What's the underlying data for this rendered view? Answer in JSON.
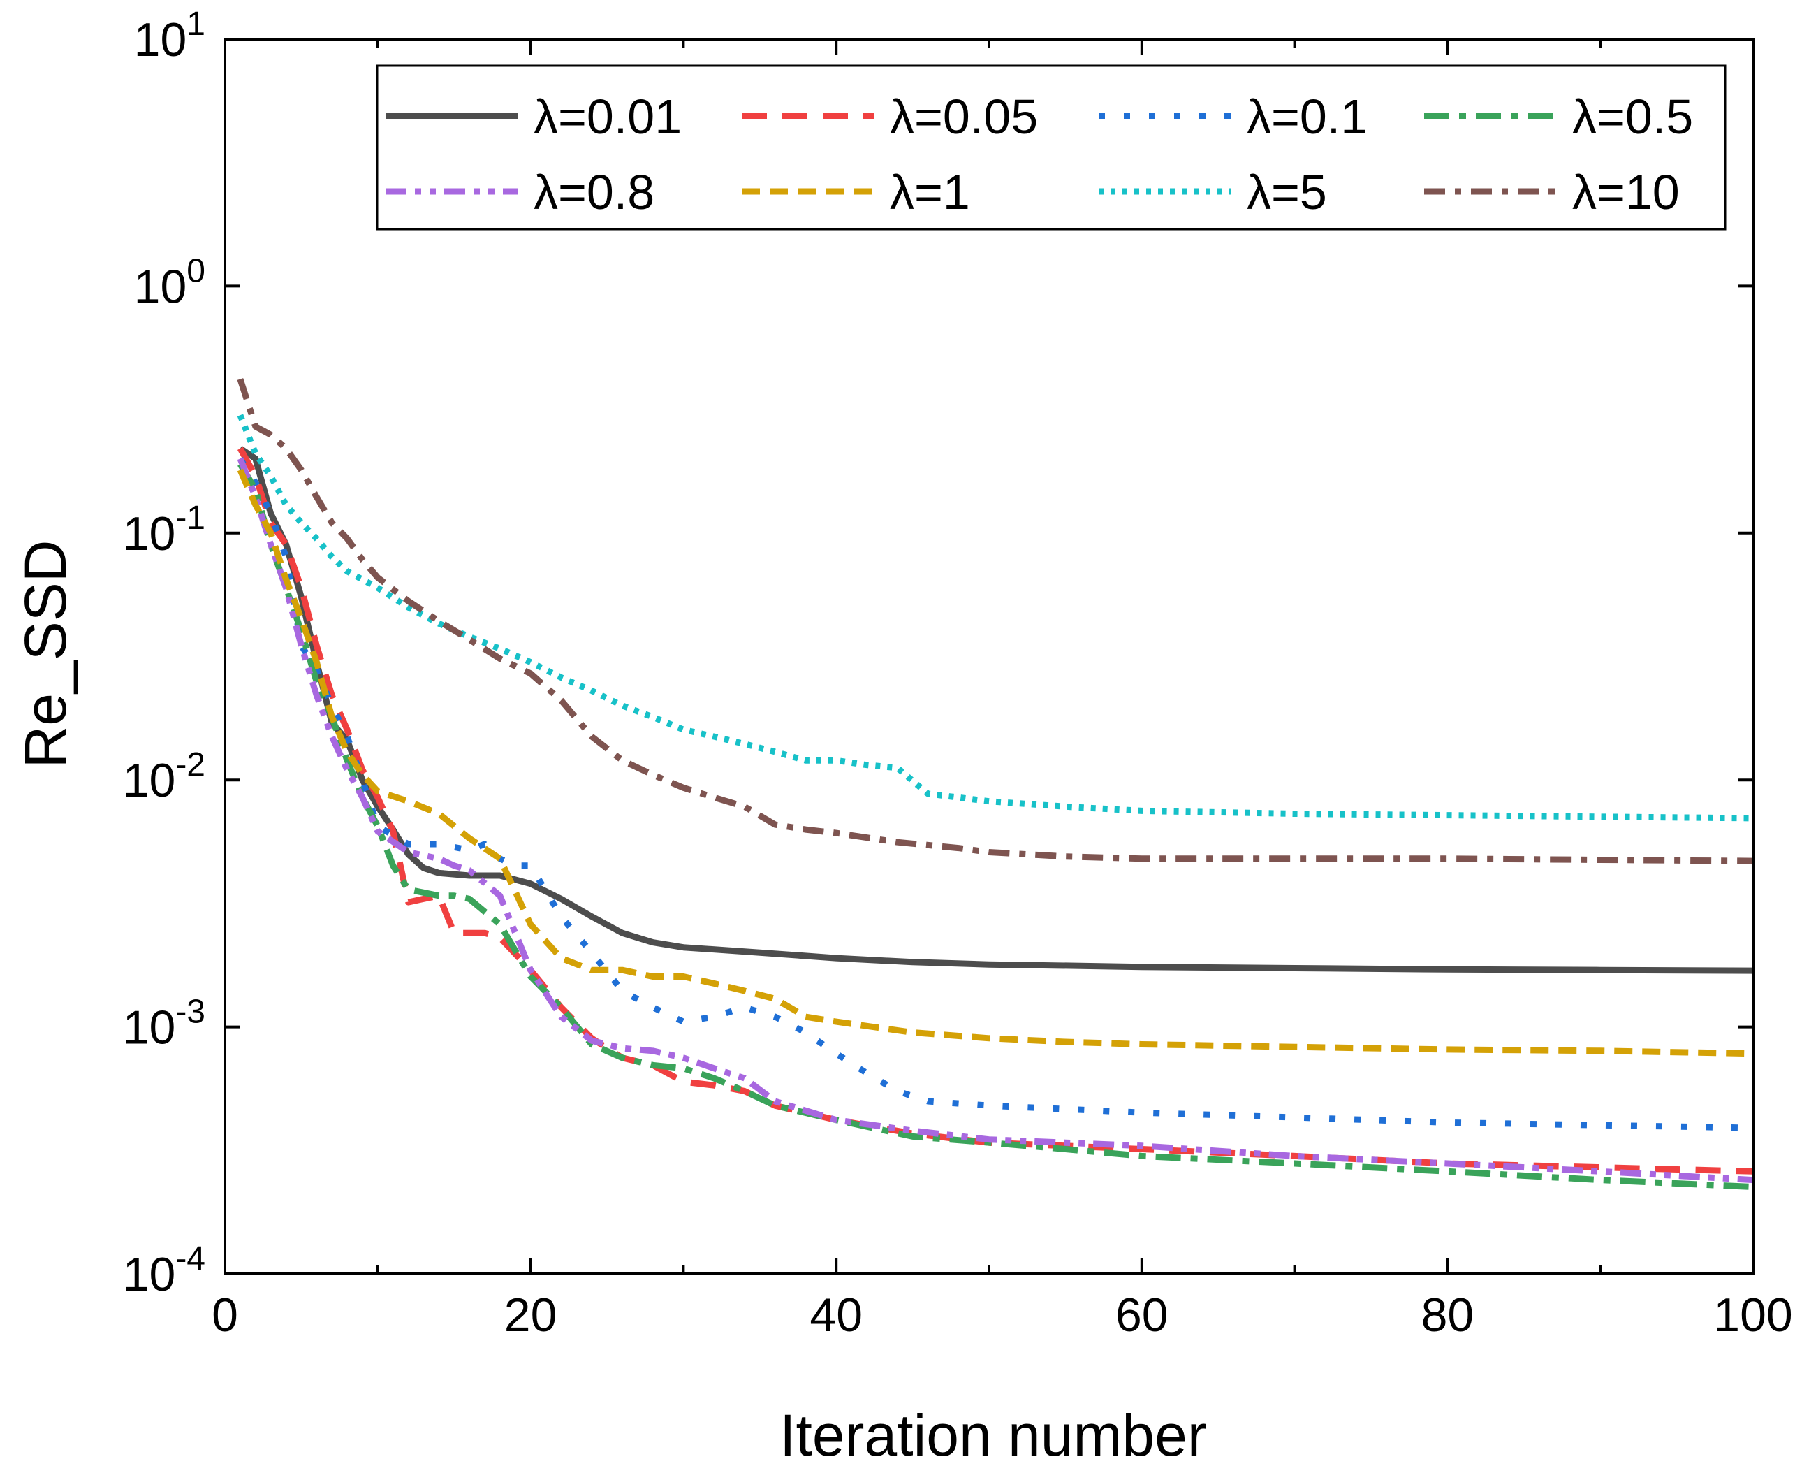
{
  "chart_data": {
    "type": "line",
    "title": "",
    "xlabel": "Iteration number",
    "ylabel": "Re_SSD",
    "xlim": [
      0,
      100
    ],
    "ylim": [
      0.0001,
      10
    ],
    "yscale": "log",
    "x_ticks": [
      0,
      20,
      40,
      60,
      80,
      100
    ],
    "x_tick_labels": [
      "0",
      "20",
      "40",
      "60",
      "80",
      "100"
    ],
    "y_ticks": [
      {
        "value": 0.0001,
        "base": "10",
        "exp": "-4"
      },
      {
        "value": 0.001,
        "base": "10",
        "exp": "-3"
      },
      {
        "value": 0.01,
        "base": "10",
        "exp": "-2"
      },
      {
        "value": 0.1,
        "base": "10",
        "exp": "-1"
      },
      {
        "value": 1,
        "base": "10",
        "exp": "0"
      },
      {
        "value": 10,
        "base": "10",
        "exp": "1"
      }
    ],
    "grid": false,
    "legend_position": "top-right",
    "series": [
      {
        "name": "λ=0.01",
        "color": "#4d4d4d",
        "dash": "solid",
        "points": [
          [
            1,
            0.22
          ],
          [
            2,
            0.2
          ],
          [
            3,
            0.12
          ],
          [
            4,
            0.09
          ],
          [
            5,
            0.055
          ],
          [
            6,
            0.03
          ],
          [
            7,
            0.017
          ],
          [
            8,
            0.0145
          ],
          [
            9,
            0.01
          ],
          [
            10,
            0.0078
          ],
          [
            11,
            0.0063
          ],
          [
            12,
            0.005
          ],
          [
            13,
            0.0044
          ],
          [
            14,
            0.0042
          ],
          [
            16,
            0.0041
          ],
          [
            18,
            0.0041
          ],
          [
            20,
            0.0038
          ],
          [
            22,
            0.0033
          ],
          [
            24,
            0.0028
          ],
          [
            26,
            0.0024
          ],
          [
            28,
            0.0022
          ],
          [
            30,
            0.0021
          ],
          [
            35,
            0.002
          ],
          [
            40,
            0.0019
          ],
          [
            45,
            0.00183
          ],
          [
            50,
            0.00179
          ],
          [
            60,
            0.00175
          ],
          [
            70,
            0.00173
          ],
          [
            80,
            0.00171
          ],
          [
            90,
            0.0017
          ],
          [
            100,
            0.00169
          ]
        ]
      },
      {
        "name": "λ=0.05",
        "color": "#f04040",
        "dash": "longdash",
        "points": [
          [
            1,
            0.22
          ],
          [
            2,
            0.17
          ],
          [
            3,
            0.11
          ],
          [
            4,
            0.09
          ],
          [
            5,
            0.06
          ],
          [
            6,
            0.035
          ],
          [
            7,
            0.022
          ],
          [
            8,
            0.016
          ],
          [
            9,
            0.011
          ],
          [
            10,
            0.0085
          ],
          [
            11,
            0.0062
          ],
          [
            12,
            0.0032
          ],
          [
            13,
            0.0033
          ],
          [
            14,
            0.0034
          ],
          [
            15,
            0.0024
          ],
          [
            17,
            0.0024
          ],
          [
            18,
            0.0023
          ],
          [
            20,
            0.0017
          ],
          [
            22,
            0.0012
          ],
          [
            24,
            0.0009
          ],
          [
            26,
            0.00075
          ],
          [
            28,
            0.0007
          ],
          [
            30,
            0.0006
          ],
          [
            32,
            0.00058
          ],
          [
            34,
            0.00055
          ],
          [
            36,
            0.00048
          ],
          [
            40,
            0.00042
          ],
          [
            45,
            0.00037
          ],
          [
            50,
            0.00034
          ],
          [
            55,
            0.00033
          ],
          [
            60,
            0.00032
          ],
          [
            70,
            0.0003
          ],
          [
            80,
            0.00028
          ],
          [
            90,
            0.00027
          ],
          [
            100,
            0.00026
          ]
        ]
      },
      {
        "name": "λ=0.1",
        "color": "#1f6fd6",
        "dash": "dotted",
        "points": [
          [
            1,
            0.2
          ],
          [
            2,
            0.16
          ],
          [
            3,
            0.12
          ],
          [
            4,
            0.08
          ],
          [
            5,
            0.035
          ],
          [
            6,
            0.028
          ],
          [
            7,
            0.02
          ],
          [
            8,
            0.015
          ],
          [
            9,
            0.01
          ],
          [
            10,
            0.0065
          ],
          [
            12,
            0.0055
          ],
          [
            14,
            0.0055
          ],
          [
            16,
            0.0052
          ],
          [
            17,
            0.0055
          ],
          [
            18,
            0.0048
          ],
          [
            19,
            0.0045
          ],
          [
            20,
            0.0045
          ],
          [
            22,
            0.0028
          ],
          [
            24,
            0.002
          ],
          [
            26,
            0.0014
          ],
          [
            28,
            0.0012
          ],
          [
            30,
            0.00105
          ],
          [
            32,
            0.0011
          ],
          [
            34,
            0.0012
          ],
          [
            36,
            0.0011
          ],
          [
            38,
            0.00095
          ],
          [
            40,
            0.00078
          ],
          [
            42,
            0.00065
          ],
          [
            44,
            0.00055
          ],
          [
            46,
            0.0005
          ],
          [
            50,
            0.00048
          ],
          [
            60,
            0.00045
          ],
          [
            70,
            0.00043
          ],
          [
            80,
            0.00041
          ],
          [
            90,
            0.0004
          ],
          [
            100,
            0.00039
          ]
        ]
      },
      {
        "name": "λ=0.5",
        "color": "#3aa35a",
        "dash": "dashdot",
        "points": [
          [
            1,
            0.19
          ],
          [
            2,
            0.15
          ],
          [
            3,
            0.09
          ],
          [
            4,
            0.06
          ],
          [
            5,
            0.04
          ],
          [
            6,
            0.025
          ],
          [
            7,
            0.018
          ],
          [
            8,
            0.012
          ],
          [
            9,
            0.0085
          ],
          [
            10,
            0.0065
          ],
          [
            11,
            0.0045
          ],
          [
            12,
            0.0036
          ],
          [
            13,
            0.0035
          ],
          [
            14,
            0.0034
          ],
          [
            15,
            0.0034
          ],
          [
            16,
            0.0033
          ],
          [
            18,
            0.0026
          ],
          [
            20,
            0.0016
          ],
          [
            22,
            0.0012
          ],
          [
            24,
            0.00085
          ],
          [
            26,
            0.00075
          ],
          [
            28,
            0.0007
          ],
          [
            30,
            0.00068
          ],
          [
            32,
            0.00062
          ],
          [
            34,
            0.00055
          ],
          [
            36,
            0.00048
          ],
          [
            40,
            0.00042
          ],
          [
            45,
            0.00036
          ],
          [
            50,
            0.00034
          ],
          [
            55,
            0.00032
          ],
          [
            60,
            0.0003
          ],
          [
            70,
            0.00028
          ],
          [
            80,
            0.00026
          ],
          [
            90,
            0.00024
          ],
          [
            100,
            0.000225
          ]
        ]
      },
      {
        "name": "λ=0.8",
        "color": "#a868e0",
        "dash": "dashdotdot",
        "points": [
          [
            1,
            0.2
          ],
          [
            2,
            0.14
          ],
          [
            3,
            0.09
          ],
          [
            4,
            0.06
          ],
          [
            5,
            0.035
          ],
          [
            6,
            0.022
          ],
          [
            7,
            0.015
          ],
          [
            8,
            0.011
          ],
          [
            9,
            0.0085
          ],
          [
            10,
            0.0062
          ],
          [
            12,
            0.0051
          ],
          [
            14,
            0.0048
          ],
          [
            15,
            0.0045
          ],
          [
            16,
            0.0043
          ],
          [
            18,
            0.0034
          ],
          [
            20,
            0.0017
          ],
          [
            22,
            0.0011
          ],
          [
            24,
            0.00088
          ],
          [
            26,
            0.00082
          ],
          [
            28,
            0.0008
          ],
          [
            30,
            0.00075
          ],
          [
            32,
            0.00068
          ],
          [
            34,
            0.00062
          ],
          [
            36,
            0.0005
          ],
          [
            40,
            0.00042
          ],
          [
            45,
            0.00038
          ],
          [
            50,
            0.00035
          ],
          [
            55,
            0.00034
          ],
          [
            60,
            0.00033
          ],
          [
            70,
            0.0003
          ],
          [
            80,
            0.00028
          ],
          [
            90,
            0.00026
          ],
          [
            100,
            0.00024
          ]
        ]
      },
      {
        "name": "λ=1",
        "color": "#d4a106",
        "dash": "shortdash",
        "points": [
          [
            1,
            0.18
          ],
          [
            2,
            0.13
          ],
          [
            3,
            0.1
          ],
          [
            4,
            0.065
          ],
          [
            5,
            0.045
          ],
          [
            6,
            0.03
          ],
          [
            7,
            0.018
          ],
          [
            8,
            0.013
          ],
          [
            9,
            0.0105
          ],
          [
            10,
            0.009
          ],
          [
            12,
            0.0082
          ],
          [
            14,
            0.0073
          ],
          [
            16,
            0.0058
          ],
          [
            18,
            0.0048
          ],
          [
            20,
            0.0026
          ],
          [
            22,
            0.0019
          ],
          [
            24,
            0.0017
          ],
          [
            26,
            0.0017
          ],
          [
            28,
            0.0016
          ],
          [
            30,
            0.0016
          ],
          [
            32,
            0.0015
          ],
          [
            34,
            0.0014
          ],
          [
            36,
            0.0013
          ],
          [
            38,
            0.0011
          ],
          [
            40,
            0.00105
          ],
          [
            45,
            0.00095
          ],
          [
            50,
            0.0009
          ],
          [
            55,
            0.00087
          ],
          [
            60,
            0.00085
          ],
          [
            70,
            0.00083
          ],
          [
            80,
            0.00081
          ],
          [
            90,
            0.0008
          ],
          [
            100,
            0.00078
          ]
        ]
      },
      {
        "name": "λ=5",
        "color": "#17c1c8",
        "dash": "finedot",
        "points": [
          [
            1,
            0.3
          ],
          [
            2,
            0.21
          ],
          [
            3,
            0.17
          ],
          [
            4,
            0.13
          ],
          [
            5,
            0.11
          ],
          [
            6,
            0.095
          ],
          [
            7,
            0.08
          ],
          [
            8,
            0.07
          ],
          [
            10,
            0.06
          ],
          [
            12,
            0.05
          ],
          [
            14,
            0.043
          ],
          [
            16,
            0.038
          ],
          [
            18,
            0.034
          ],
          [
            20,
            0.03
          ],
          [
            22,
            0.026
          ],
          [
            24,
            0.023
          ],
          [
            26,
            0.02
          ],
          [
            28,
            0.018
          ],
          [
            30,
            0.016
          ],
          [
            32,
            0.015
          ],
          [
            34,
            0.014
          ],
          [
            36,
            0.013
          ],
          [
            38,
            0.012
          ],
          [
            40,
            0.012
          ],
          [
            42,
            0.0115
          ],
          [
            44,
            0.0112
          ],
          [
            46,
            0.0088
          ],
          [
            50,
            0.0082
          ],
          [
            55,
            0.0078
          ],
          [
            60,
            0.0075
          ],
          [
            70,
            0.0073
          ],
          [
            80,
            0.0072
          ],
          [
            90,
            0.0071
          ],
          [
            100,
            0.007
          ]
        ]
      },
      {
        "name": "λ=10",
        "color": "#7e5450",
        "dash": "dashdotlong",
        "points": [
          [
            1,
            0.42
          ],
          [
            2,
            0.27
          ],
          [
            3,
            0.25
          ],
          [
            4,
            0.22
          ],
          [
            5,
            0.18
          ],
          [
            6,
            0.14
          ],
          [
            7,
            0.11
          ],
          [
            8,
            0.095
          ],
          [
            9,
            0.078
          ],
          [
            10,
            0.066
          ],
          [
            12,
            0.053
          ],
          [
            14,
            0.044
          ],
          [
            16,
            0.037
          ],
          [
            18,
            0.031
          ],
          [
            20,
            0.027
          ],
          [
            22,
            0.021
          ],
          [
            24,
            0.015
          ],
          [
            26,
            0.012
          ],
          [
            28,
            0.0105
          ],
          [
            30,
            0.0093
          ],
          [
            32,
            0.0085
          ],
          [
            34,
            0.0078
          ],
          [
            36,
            0.0066
          ],
          [
            38,
            0.0063
          ],
          [
            40,
            0.0061
          ],
          [
            44,
            0.0056
          ],
          [
            48,
            0.0053
          ],
          [
            50,
            0.0051
          ],
          [
            55,
            0.0049
          ],
          [
            60,
            0.0048
          ],
          [
            70,
            0.0048
          ],
          [
            80,
            0.0048
          ],
          [
            90,
            0.00475
          ],
          [
            100,
            0.0047
          ]
        ]
      }
    ]
  }
}
